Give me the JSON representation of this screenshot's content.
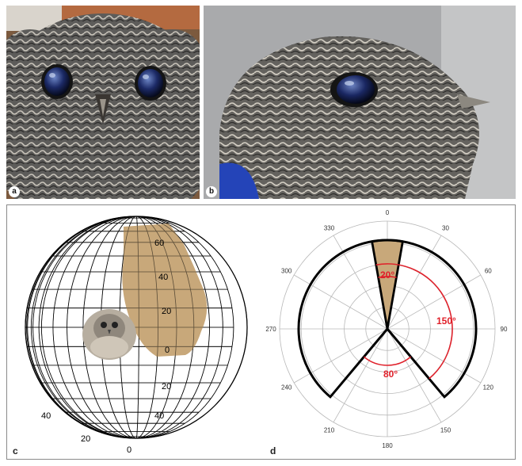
{
  "figure": {
    "panels": {
      "a": {
        "label": "a"
      },
      "b": {
        "label": "b"
      },
      "c": {
        "label": "c",
        "latitude_labels": [
          "60",
          "40",
          "20",
          "0",
          "20",
          "40"
        ],
        "longitude_labels": [
          "40",
          "20",
          "0"
        ]
      },
      "d": {
        "label": "d",
        "angle_labels": [
          "0",
          "30",
          "60",
          "90",
          "120",
          "150",
          "180",
          "210",
          "240",
          "270",
          "300",
          "330"
        ],
        "annotations": [
          "20°",
          "150°",
          "80°"
        ]
      }
    }
  },
  "colors": {
    "field_fill": "#c8a87a",
    "annotation_red": "#e0202a",
    "outline": "#000000"
  }
}
